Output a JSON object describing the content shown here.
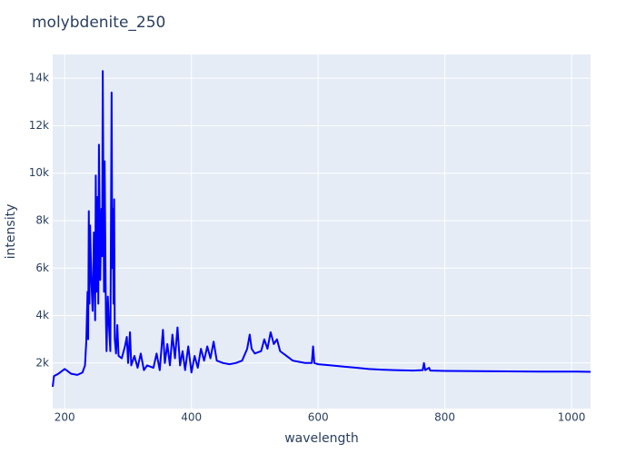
{
  "chart_data": {
    "type": "line",
    "title": "molybdenite_250",
    "x_label": "wavelength",
    "y_label": "intensity",
    "x": [
      181,
      183,
      190,
      195,
      200,
      205,
      210,
      220,
      228,
      232,
      234,
      236,
      237,
      238,
      239,
      240,
      242,
      244,
      246,
      248,
      249,
      250,
      252,
      253,
      254,
      256,
      258,
      259,
      260,
      262,
      263,
      265,
      266,
      268,
      270,
      272,
      274,
      275,
      276,
      277,
      278,
      279,
      281,
      283,
      285,
      290,
      295,
      298,
      300,
      303,
      305,
      310,
      315,
      320,
      325,
      330,
      340,
      345,
      350,
      355,
      358,
      362,
      366,
      370,
      374,
      378,
      382,
      386,
      390,
      395,
      400,
      405,
      410,
      415,
      420,
      425,
      430,
      435,
      440,
      450,
      460,
      470,
      480,
      488,
      492,
      495,
      500,
      510,
      515,
      520,
      525,
      530,
      535,
      540,
      550,
      560,
      570,
      580,
      590,
      592,
      594,
      600,
      620,
      640,
      660,
      680,
      700,
      720,
      750,
      765,
      767,
      769,
      775,
      777,
      800,
      850,
      900,
      950,
      1000,
      1030
    ],
    "series": [
      {
        "name": "intensity",
        "color": "#0000ff",
        "values": [
          1000,
          1450,
          1550,
          1650,
          1750,
          1650,
          1550,
          1500,
          1600,
          1900,
          2900,
          5000,
          3000,
          8400,
          4500,
          7800,
          5500,
          4200,
          7500,
          3800,
          9900,
          5000,
          9000,
          4500,
          11200,
          5500,
          8500,
          6500,
          14300,
          5000,
          10500,
          4000,
          2500,
          4800,
          3500,
          2500,
          13400,
          6000,
          8500,
          4500,
          8900,
          3000,
          2400,
          3600,
          2300,
          2200,
          2700,
          3100,
          2000,
          3300,
          1900,
          2300,
          1800,
          2400,
          1700,
          1900,
          1800,
          2400,
          1700,
          3400,
          2000,
          2800,
          1900,
          3200,
          2200,
          3500,
          1900,
          2500,
          1700,
          2700,
          1600,
          2300,
          1800,
          2600,
          2100,
          2700,
          2200,
          2900,
          2100,
          2000,
          1950,
          2000,
          2100,
          2600,
          3200,
          2600,
          2400,
          2500,
          3000,
          2600,
          3300,
          2800,
          3000,
          2500,
          2300,
          2100,
          2050,
          2000,
          2000,
          2700,
          2000,
          1950,
          1900,
          1850,
          1800,
          1750,
          1720,
          1700,
          1680,
          1700,
          2000,
          1700,
          1800,
          1680,
          1670,
          1660,
          1650,
          1640,
          1640,
          1630
        ]
      }
    ],
    "xlim": [
      181,
      1030
    ],
    "ylim": [
      80,
      15000
    ],
    "xticks": [
      200,
      400,
      600,
      800,
      1000
    ],
    "yticks": [
      {
        "value": 2000,
        "label": "2k"
      },
      {
        "value": 4000,
        "label": "4k"
      },
      {
        "value": 6000,
        "label": "6k"
      },
      {
        "value": 8000,
        "label": "8k"
      },
      {
        "value": 10000,
        "label": "10k"
      },
      {
        "value": 12000,
        "label": "12k"
      },
      {
        "value": 14000,
        "label": "14k"
      }
    ],
    "grid": true
  }
}
